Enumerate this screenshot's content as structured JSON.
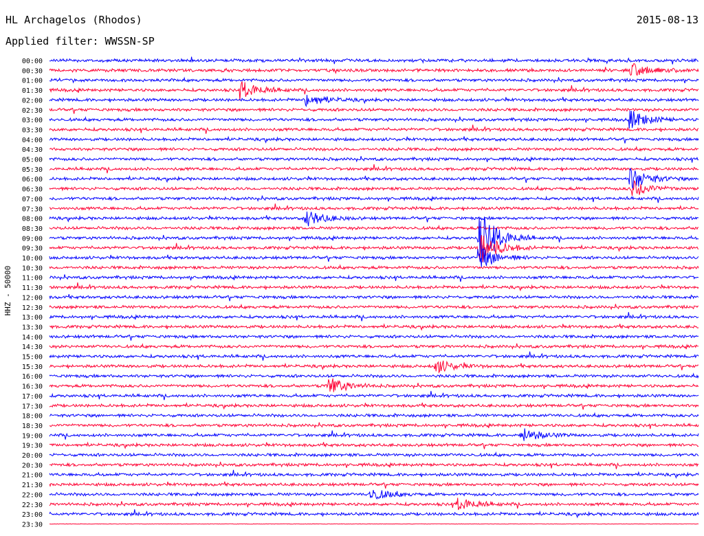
{
  "header": {
    "station": "HL Archagelos (Rhodos)",
    "filter": "Applied filter: WWSSN-SP",
    "date": "2015-08-13"
  },
  "chart_data": {
    "type": "line",
    "title": "HL Archagelos (Rhodos)",
    "date": "2015-08-13",
    "ylabel": "HHZ - 50000",
    "rows": [
      "00:00",
      "00:30",
      "01:00",
      "01:30",
      "02:00",
      "02:30",
      "03:00",
      "03:30",
      "04:00",
      "04:30",
      "05:00",
      "05:30",
      "06:00",
      "06:30",
      "07:00",
      "07:30",
      "08:00",
      "08:30",
      "09:00",
      "09:30",
      "10:00",
      "10:30",
      "11:00",
      "11:30",
      "12:00",
      "12:30",
      "13:00",
      "13:30",
      "14:00",
      "14:30",
      "15:00",
      "15:30",
      "16:00",
      "16:30",
      "17:00",
      "17:30",
      "18:00",
      "18:30",
      "19:00",
      "19:30",
      "20:00",
      "20:30",
      "21:00",
      "21:30",
      "22:00",
      "22:30",
      "23:00",
      "23:30"
    ],
    "series_colors": [
      "#0000ff",
      "#ff0033"
    ],
    "events": [
      {
        "row": "00:30",
        "minute": 27,
        "amplitude": 0.6
      },
      {
        "row": "01:30",
        "minute": 9,
        "amplitude": 0.8
      },
      {
        "row": "02:00",
        "minute": 12,
        "amplitude": 0.6
      },
      {
        "row": "03:00",
        "minute": 27,
        "amplitude": 0.8
      },
      {
        "row": "06:00",
        "minute": 27,
        "amplitude": 1.0
      },
      {
        "row": "06:30",
        "minute": 27,
        "amplitude": 0.8
      },
      {
        "row": "08:00",
        "minute": 12,
        "amplitude": 0.7
      },
      {
        "row": "09:00",
        "minute": 20,
        "amplitude": 2.5
      },
      {
        "row": "09:30",
        "minute": 20,
        "amplitude": 1.6
      },
      {
        "row": "10:00",
        "minute": 20,
        "amplitude": 1.0
      },
      {
        "row": "15:30",
        "minute": 18,
        "amplitude": 0.6
      },
      {
        "row": "16:30",
        "minute": 13,
        "amplitude": 0.8
      },
      {
        "row": "19:00",
        "minute": 22,
        "amplitude": 0.6
      },
      {
        "row": "22:00",
        "minute": 15,
        "amplitude": 0.5
      },
      {
        "row": "22:30",
        "minute": 19,
        "amplitude": 0.6
      }
    ]
  }
}
